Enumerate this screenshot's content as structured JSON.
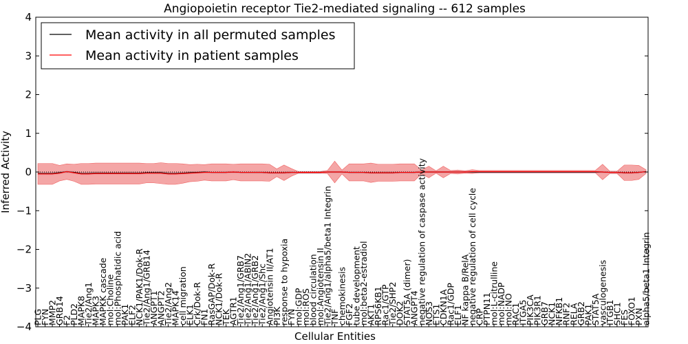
{
  "chart_data": {
    "type": "line",
    "title": "Angiopoietin receptor Tie2-mediated signaling -- 612 samples",
    "xlabel": "Cellular Entities",
    "ylabel": "Inferred Activity",
    "ylim": [
      -4,
      4
    ],
    "yticks": [
      "4",
      "3",
      "2",
      "1",
      "0",
      "−1",
      "−2",
      "−3",
      "−4"
    ],
    "legend": {
      "position": "top-left",
      "entries": [
        {
          "label": "Mean activity in all permuted samples",
          "color": "#000000"
        },
        {
          "label": "Mean activity in patient samples",
          "color": "#ff0000"
        }
      ]
    },
    "band_color": "#f08080",
    "permuted_band_color": "#9999cc",
    "categories": [
      "PLG",
      "FYN",
      "MMP2",
      "GRB14",
      "F2",
      "PLD2",
      "MAPK8",
      "Tie2/Ang1",
      "MAPK3",
      "MAPKK cascade",
      "mol:Choline",
      "mol:Phosphatidic acid",
      "PAK1",
      "ELF2",
      "NCK1/PAK1/Dok-R",
      "Tie2/Ang1/GRB14",
      "ANGPT1",
      "ANGPT2",
      "Tie2/Ang2",
      "MAPK14",
      "cell migration",
      "ELK1",
      "Crk/Dok-R",
      "FN1",
      "RasGAP/Dok-R",
      "NCK1/Dok-R",
      "TEK",
      "AGTR1",
      "Tie2/Ang1/GRB7",
      "Tie2/Ang1/ABIN2",
      "Tie2/Ang1/GRB2",
      "Tie2/Ang1/Shc",
      "Angiotensin II/AT1",
      "PI3K",
      "response to hypoxia",
      "FYN",
      "mol:GDP",
      "mol:ROS",
      "blood circulation",
      "mol:Angiotensin II",
      "Tie2/Ang1/alpha5/beta1 Integrin",
      "TNF",
      "chemokinesis",
      "FGF2",
      "tube development",
      "mol:beta2-estradiol",
      "AKT1",
      "RPS6KB1",
      "Rac1/GTP",
      "Tie2/SHP2",
      "DOK2",
      "STAT5A (dimer)",
      "ANGPT4",
      "negative regulation of caspase activity",
      "NOS3",
      "ETS1",
      "CDKN1A",
      "Rac1/GDP",
      "ELF1",
      "NF kappa B/RelA",
      "negative regulation of cell cycle",
      "CRP",
      "PTPN11",
      "mol:L-citrulline",
      "mol:NADP",
      "mol:NO",
      "RAC1",
      "ITGA5",
      "PIK3CA",
      "PIK3R1",
      "GRB7",
      "NCK1",
      "NFKB1",
      "RNF2",
      "RELA",
      "GRB2",
      "PAK1",
      "STAT5A",
      "vasculogenesis",
      "ITGB1",
      "SHC1",
      "FES",
      "FOXO1",
      "PXN",
      "alpha5/beta1 Integrin"
    ],
    "series": [
      {
        "name": "Mean activity in all permuted samples",
        "values": [
          -0.04,
          -0.04,
          -0.04,
          -0.02,
          0.01,
          -0.01,
          -0.04,
          -0.04,
          -0.03,
          -0.03,
          -0.03,
          -0.03,
          -0.03,
          -0.03,
          -0.03,
          -0.02,
          -0.02,
          -0.02,
          -0.04,
          -0.04,
          -0.03,
          -0.02,
          -0.01,
          0.0,
          -0.01,
          -0.01,
          -0.01,
          0.0,
          -0.01,
          -0.01,
          -0.01,
          -0.01,
          -0.02,
          -0.02,
          -0.02,
          -0.01,
          -0.01,
          -0.01,
          -0.01,
          -0.01,
          0.0,
          0.0,
          0.0,
          -0.01,
          -0.01,
          -0.01,
          -0.02,
          -0.02,
          -0.02,
          -0.02,
          -0.01,
          -0.01,
          -0.01,
          0.0,
          0.0,
          0.0,
          0.0,
          0.0,
          0.0,
          0.0,
          0.0,
          0.0,
          0.0,
          0.0,
          0.0,
          0.0,
          0.0,
          0.0,
          0.0,
          0.0,
          0.0,
          0.0,
          0.0,
          0.0,
          0.0,
          0.0,
          0.0,
          0.0,
          0.0,
          -0.01,
          -0.01,
          -0.02,
          -0.02,
          -0.01,
          0.01
        ]
      },
      {
        "name": "Mean activity in patient samples",
        "values": [
          -0.05,
          -0.05,
          -0.05,
          -0.03,
          0.01,
          -0.02,
          -0.05,
          -0.05,
          -0.04,
          -0.04,
          -0.04,
          -0.04,
          -0.04,
          -0.04,
          -0.04,
          -0.03,
          -0.03,
          -0.03,
          -0.05,
          -0.05,
          -0.04,
          -0.03,
          -0.02,
          -0.01,
          -0.01,
          -0.01,
          -0.01,
          0.0,
          -0.01,
          -0.01,
          -0.01,
          -0.01,
          -0.02,
          -0.02,
          -0.02,
          -0.01,
          -0.01,
          -0.01,
          -0.01,
          -0.01,
          0.0,
          0.0,
          0.0,
          -0.01,
          -0.01,
          -0.01,
          -0.02,
          -0.02,
          -0.02,
          -0.02,
          -0.01,
          -0.01,
          -0.01,
          0.0,
          0.0,
          0.0,
          0.0,
          0.0,
          0.0,
          0.0,
          0.01,
          0.01,
          0.01,
          0.01,
          0.01,
          0.01,
          0.01,
          0.01,
          0.01,
          0.01,
          0.01,
          0.01,
          0.01,
          0.01,
          0.01,
          0.01,
          0.01,
          0.01,
          0.0,
          -0.01,
          -0.01,
          -0.02,
          -0.02,
          -0.01,
          0.01
        ]
      }
    ],
    "spread": [
      0.27,
      0.27,
      0.27,
      0.2,
      0.2,
      0.22,
      0.27,
      0.27,
      0.27,
      0.27,
      0.27,
      0.27,
      0.27,
      0.27,
      0.27,
      0.25,
      0.25,
      0.27,
      0.27,
      0.27,
      0.25,
      0.22,
      0.22,
      0.2,
      0.22,
      0.22,
      0.22,
      0.2,
      0.22,
      0.22,
      0.22,
      0.22,
      0.22,
      0.1,
      0.2,
      0.1,
      0.02,
      0.02,
      0.02,
      0.02,
      0.04,
      0.28,
      0.05,
      0.22,
      0.22,
      0.22,
      0.25,
      0.22,
      0.22,
      0.22,
      0.22,
      0.22,
      0.22,
      0.05,
      0.15,
      0.03,
      0.15,
      0.04,
      0.05,
      0.03,
      0.05,
      0.03,
      0.03,
      0.03,
      0.03,
      0.03,
      0.03,
      0.03,
      0.03,
      0.03,
      0.03,
      0.03,
      0.03,
      0.03,
      0.03,
      0.03,
      0.03,
      0.03,
      0.2,
      0.03,
      0.03,
      0.2,
      0.2,
      0.18,
      0.05
    ]
  }
}
